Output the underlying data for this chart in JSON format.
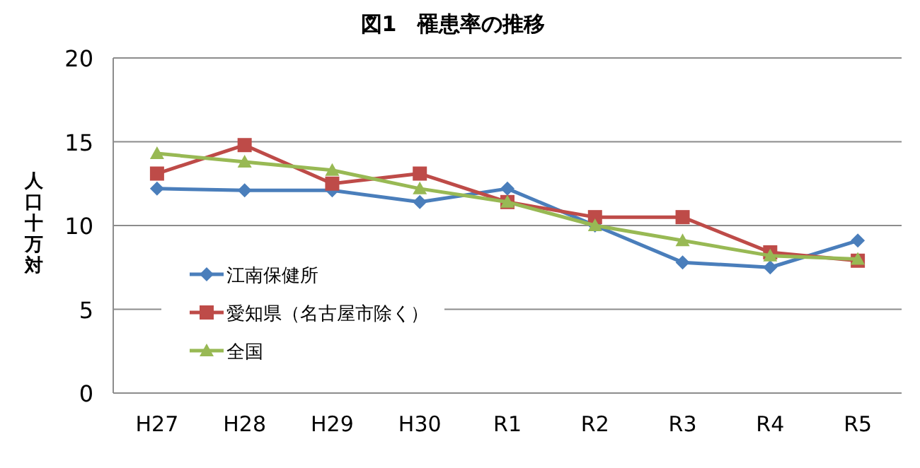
{
  "chart_data": {
    "type": "line",
    "title": "図1　罹患率の推移",
    "ylabel": "人口十万対",
    "categories": [
      "H27",
      "H28",
      "H29",
      "H30",
      "R1",
      "R2",
      "R3",
      "R4",
      "R5"
    ],
    "series": [
      {
        "name": "江南保健所",
        "color": "#4a7ebb",
        "marker": "diamond",
        "values": [
          12.2,
          12.1,
          12.1,
          11.4,
          12.2,
          10.0,
          7.8,
          7.5,
          9.1
        ]
      },
      {
        "name": "愛知県（名古屋市除く）",
        "color": "#be4b48",
        "marker": "square",
        "values": [
          13.1,
          14.8,
          12.5,
          13.1,
          11.4,
          10.5,
          10.5,
          8.4,
          7.9
        ]
      },
      {
        "name": "全国",
        "color": "#98b954",
        "marker": "triangle",
        "values": [
          14.3,
          13.8,
          13.3,
          12.2,
          11.4,
          10.0,
          9.1,
          8.2,
          8.0
        ]
      }
    ],
    "ylim": [
      0,
      20
    ],
    "yticks": [
      0,
      5,
      10,
      15,
      20
    ],
    "grid": "y",
    "legend": "bottom left"
  }
}
